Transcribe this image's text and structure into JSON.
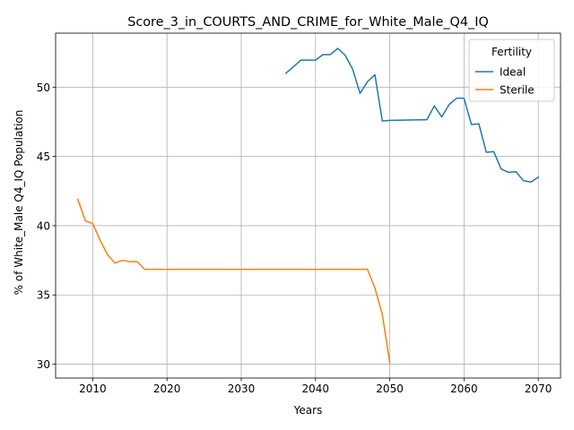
{
  "chart_data": {
    "type": "line",
    "title": "Score_3_in_COURTS_AND_CRIME_for_White_Male_Q4_IQ",
    "xlabel": "Years",
    "ylabel": "% of White_Male Q4_IQ Population",
    "xlim": [
      2005,
      2073
    ],
    "ylim": [
      29,
      53.9
    ],
    "xticks": [
      2010,
      2020,
      2030,
      2040,
      2050,
      2060,
      2070
    ],
    "yticks": [
      30,
      35,
      40,
      45,
      50
    ],
    "grid": true,
    "legend": {
      "title": "Fertility",
      "placement": "top-right"
    },
    "series": [
      {
        "name": "Ideal",
        "color": "#1f77b4",
        "x": [
          2036,
          2037,
          2038,
          2039,
          2040,
          2041,
          2042,
          2043,
          2044,
          2045,
          2046,
          2047,
          2048,
          2049,
          2050,
          2055,
          2056,
          2057,
          2058,
          2059,
          2060,
          2061,
          2062,
          2063,
          2064,
          2065,
          2066,
          2067,
          2068,
          2069,
          2070
        ],
        "y": [
          51.0,
          51.45,
          51.95,
          51.95,
          51.95,
          52.35,
          52.35,
          52.8,
          52.3,
          51.3,
          49.55,
          50.4,
          50.9,
          47.55,
          47.6,
          47.65,
          48.65,
          47.85,
          48.75,
          49.2,
          49.2,
          47.3,
          47.35,
          45.3,
          45.35,
          44.1,
          43.85,
          43.9,
          43.25,
          43.15,
          43.5
        ]
      },
      {
        "name": "Sterile",
        "color": "#ff7f0e",
        "x": [
          2008,
          2009,
          2010,
          2011,
          2012,
          2013,
          2014,
          2015,
          2016,
          2017,
          2018,
          2047,
          2048,
          2049,
          2050
        ],
        "y": [
          41.9,
          40.35,
          40.15,
          38.95,
          37.9,
          37.3,
          37.5,
          37.4,
          37.4,
          36.85,
          36.85,
          36.85,
          35.5,
          33.6,
          30.1
        ]
      }
    ]
  }
}
